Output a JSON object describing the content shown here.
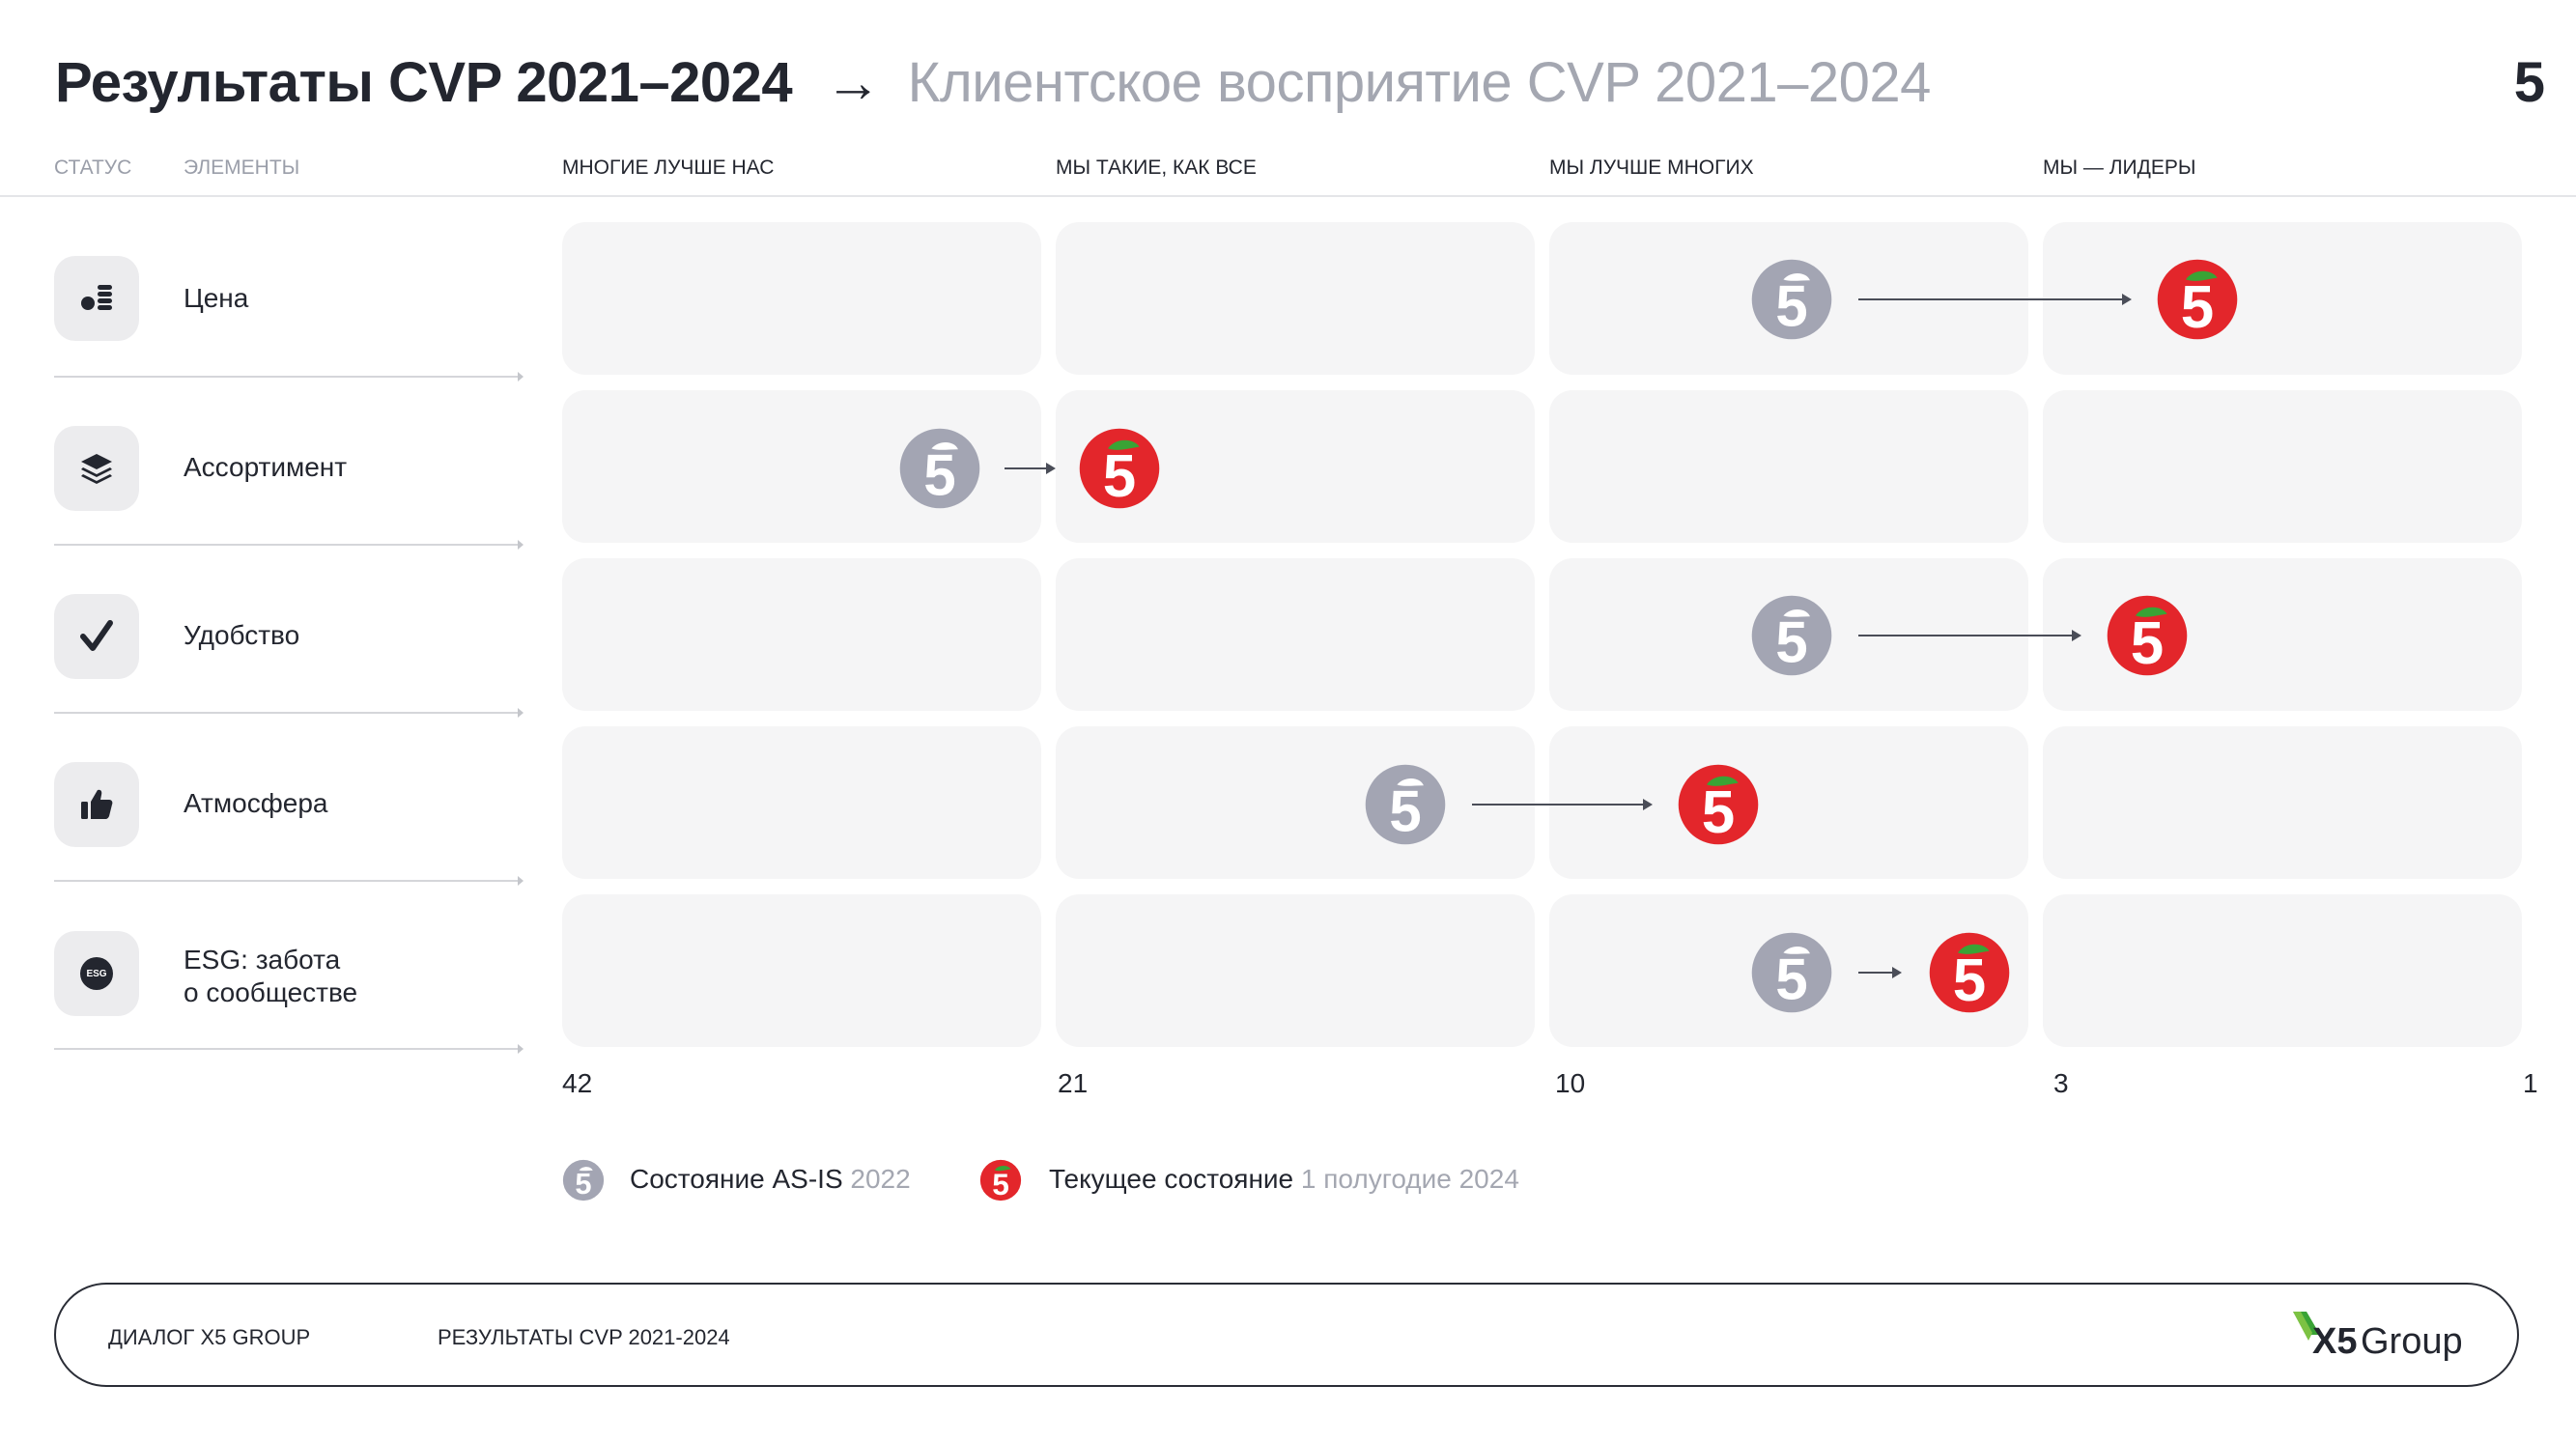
{
  "header": {
    "title": "Результаты CVP 2021–2024",
    "subtitle": "Клиентское восприятие CVP 2021–2024",
    "page_number": "5"
  },
  "table_headers": {
    "status": "СТАТУС",
    "elements": "ЭЛЕМЕНТЫ",
    "columns": [
      "МНОГИЕ ЛУЧШЕ НАС",
      "МЫ ТАКИЕ, КАК ВСЕ",
      "МЫ ЛУЧШЕ МНОГИХ",
      "МЫ — ЛИДЕРЫ"
    ]
  },
  "rows": [
    {
      "label": "Цена",
      "icon": "coins-icon"
    },
    {
      "label": "Ассортимент",
      "icon": "layers-icon"
    },
    {
      "label": "Удобство",
      "icon": "checkmark-icon"
    },
    {
      "label": "Атмосфера",
      "icon": "thumbs-up-icon"
    },
    {
      "label": "ESG: забота\nо сообществе",
      "icon": "esg-icon",
      "icon_text": "ESG"
    }
  ],
  "scale_labels": [
    "42",
    "21",
    "10",
    "3",
    "1"
  ],
  "legend": {
    "as_is_label": "Состояние AS-IS",
    "as_is_period": "2022",
    "current_label": "Текущее состояние",
    "current_period": "1 полугодие 2024"
  },
  "colors": {
    "as_is_logo": "#a3a5b3",
    "current_logo": "#e3262b",
    "leaf_green": "#3aa335",
    "cell_bg": "#f5f5f6"
  },
  "footer": {
    "left_text": "ДИАЛОГ X5 GROUP",
    "middle_text": "РЕЗУЛЬТАТЫ CVP 2021-2024",
    "brand_x5": "X5",
    "brand_group": "Group"
  }
}
